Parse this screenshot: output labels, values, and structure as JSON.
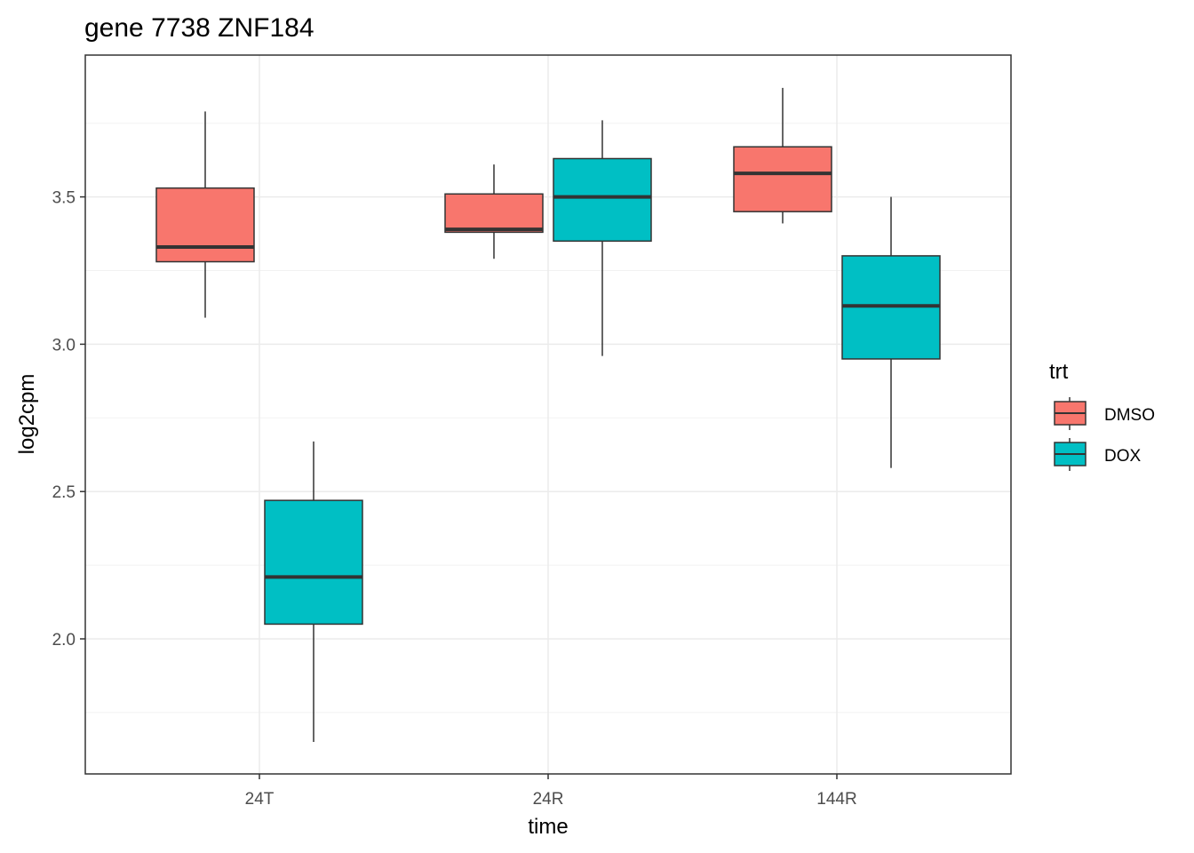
{
  "chart_data": {
    "type": "boxplot",
    "title": "gene 7738 ZNF184",
    "xlabel": "time",
    "ylabel": "log2cpm",
    "categories": [
      "24T",
      "24R",
      "144R"
    ],
    "yticks": [
      "2.0",
      "2.5",
      "3.0",
      "3.5"
    ],
    "ylim": [
      1.6,
      4.0
    ],
    "grid": true,
    "legend": {
      "title": "trt",
      "position": "right"
    },
    "series": [
      {
        "name": "DMSO",
        "color": "#F8766D",
        "boxes": [
          {
            "min": 3.09,
            "q1": 3.28,
            "median": 3.33,
            "q3": 3.53,
            "max": 3.79
          },
          {
            "min": 3.29,
            "q1": 3.38,
            "median": 3.39,
            "q3": 3.51,
            "max": 3.61
          },
          {
            "min": 3.41,
            "q1": 3.45,
            "median": 3.58,
            "q3": 3.67,
            "max": 3.87
          }
        ]
      },
      {
        "name": "DOX",
        "color": "#00BFC4",
        "boxes": [
          {
            "min": 1.65,
            "q1": 2.05,
            "median": 2.21,
            "q3": 2.47,
            "max": 2.67
          },
          {
            "min": 2.96,
            "q1": 3.35,
            "median": 3.5,
            "q3": 3.63,
            "max": 3.76
          },
          {
            "min": 2.58,
            "q1": 2.95,
            "median": 3.13,
            "q3": 3.3,
            "max": 3.5
          }
        ]
      }
    ]
  }
}
